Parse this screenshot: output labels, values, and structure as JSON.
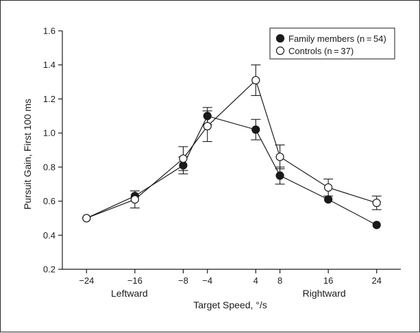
{
  "chart_data": {
    "type": "line",
    "xlabel": "Target Speed, °/s",
    "ylabel": "Pursuit Gain, First 100 ms",
    "x_ticks": [
      -24,
      -16,
      -8,
      -4,
      4,
      8,
      16,
      24
    ],
    "x_tick_labels": [
      "−24",
      "−16",
      "−8",
      "−4",
      "4",
      "8",
      "16",
      "24"
    ],
    "x_group_labels": [
      {
        "text": "Leftward",
        "x": -16
      },
      {
        "text": "Rightward",
        "x": 16
      }
    ],
    "y_ticks": [
      0.2,
      0.4,
      0.6,
      0.8,
      1.0,
      1.2,
      1.4,
      1.6
    ],
    "y_tick_labels": [
      "0.2",
      "0.4",
      "0.6",
      "0.8",
      "1.0",
      "1.2",
      "1.4",
      "1.6"
    ],
    "ylim": [
      0.2,
      1.6
    ],
    "xlim": [
      -28,
      28
    ],
    "grid": false,
    "legend_position": "top-right",
    "series": [
      {
        "name": "Family members (n = 54)",
        "marker": "filled-circle",
        "color": "#1a1a1a",
        "x": [
          -24,
          -16,
          -8,
          -4,
          4,
          8,
          16,
          24
        ],
        "y": [
          0.5,
          0.63,
          0.81,
          1.1,
          1.02,
          0.75,
          0.61,
          0.46
        ],
        "err": [
          0,
          0,
          0.05,
          0.05,
          0.06,
          0.05,
          0,
          0
        ]
      },
      {
        "name": "Controls (n = 37)",
        "marker": "open-circle",
        "color": "#1a1a1a",
        "x": [
          -24,
          -16,
          -8,
          -4,
          4,
          8,
          16,
          24
        ],
        "y": [
          0.5,
          0.61,
          0.85,
          1.04,
          1.31,
          0.86,
          0.68,
          0.59
        ],
        "err": [
          0,
          0.05,
          0.07,
          0.09,
          0.09,
          0.07,
          0.05,
          0.04
        ]
      }
    ]
  }
}
